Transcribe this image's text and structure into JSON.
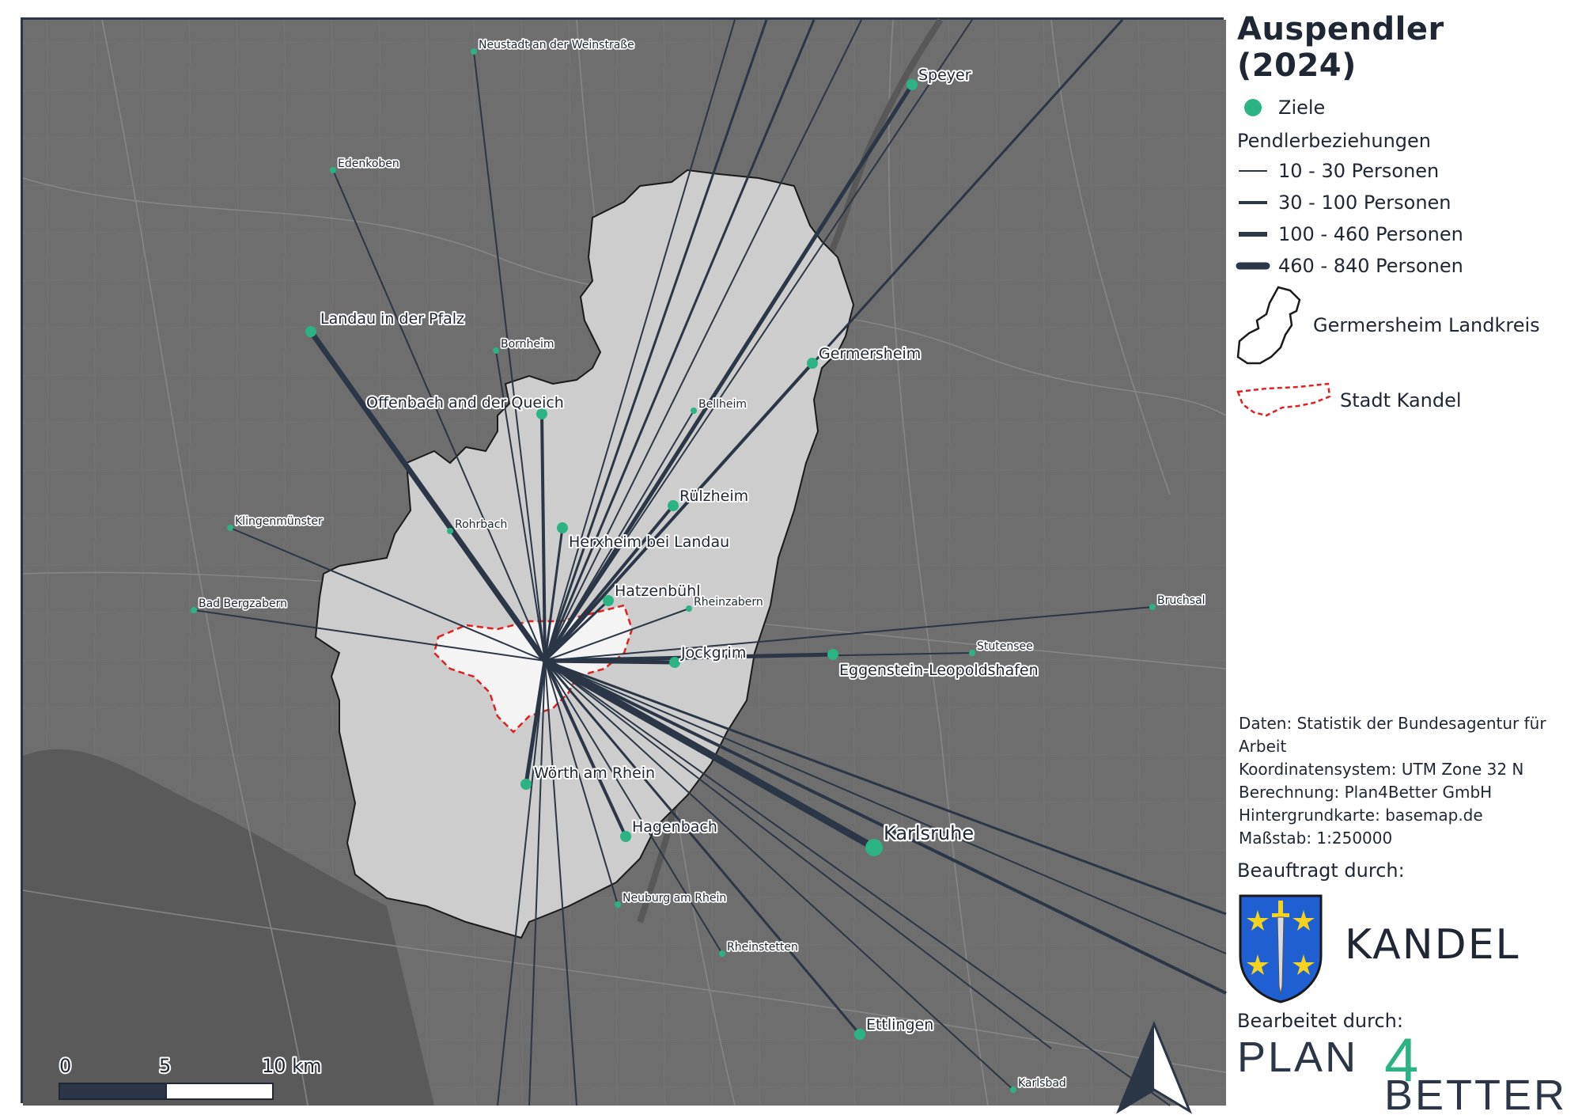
{
  "legend": {
    "title": "Auspendler (2024)",
    "destinations_label": "Ziele",
    "relations_heading": "Pendlerbeziehungen",
    "classes": [
      "10 - 30 Personen",
      "30 - 100 Personen",
      "100 - 460 Personen",
      "460 - 840 Personen"
    ],
    "district_label": "Germersheim Landkreis",
    "town_label": "Stadt Kandel"
  },
  "info": {
    "data": "Daten: Statistik der Bundesagentur für Arbeit",
    "crs": "Koordinatensystem: UTM Zone 32 N",
    "calc": "Berechnung: Plan4Better GmbH",
    "basemap": "Hintergrundkarte: basemap.de",
    "scale": "Maßstab: 1:250000"
  },
  "commissioned_by": "Beauftragt durch:",
  "commissioner": "KANDEL",
  "edited_by": "Bearbeitet durch:",
  "logo": {
    "line1": "PLAN",
    "digit": "4",
    "line2": "BETTER"
  },
  "scalebar": {
    "labels": [
      "0",
      "5",
      "10 km"
    ]
  },
  "colors": {
    "destination": "#2bb383",
    "flow": "#2b3646",
    "town_outline": "#e02020",
    "district_fill": "#cdcdcd",
    "town_fill": "#f4f4f4",
    "background": "#6d6d6d"
  },
  "places": [
    {
      "name": "Neustadt an der Weinstraße",
      "size": "small"
    },
    {
      "name": "Speyer",
      "size": "medium"
    },
    {
      "name": "Edenkoben",
      "size": "small"
    },
    {
      "name": "Landau in der Pfalz",
      "size": "medium"
    },
    {
      "name": "Bornheim",
      "size": "small"
    },
    {
      "name": "Germersheim",
      "size": "medium"
    },
    {
      "name": "Offenbach and der Queich",
      "size": "medium"
    },
    {
      "name": "Bellheim",
      "size": "small"
    },
    {
      "name": "Rülzheim",
      "size": "medium"
    },
    {
      "name": "Klingenmünster",
      "size": "small"
    },
    {
      "name": "Rohrbach",
      "size": "small"
    },
    {
      "name": "Herxheim bei Landau",
      "size": "medium"
    },
    {
      "name": "Hatzenbühl",
      "size": "medium"
    },
    {
      "name": "Rheinzabern",
      "size": "small"
    },
    {
      "name": "Bad Bergzabern",
      "size": "small"
    },
    {
      "name": "Bruchsal",
      "size": "small"
    },
    {
      "name": "Stutensee",
      "size": "small"
    },
    {
      "name": "Jockgrim",
      "size": "medium"
    },
    {
      "name": "Eggenstein-Leopoldshafen",
      "size": "medium"
    },
    {
      "name": "Wörth am Rhein",
      "size": "medium"
    },
    {
      "name": "Karlsruhe",
      "size": "large"
    },
    {
      "name": "Hagenbach",
      "size": "medium"
    },
    {
      "name": "Neuburg am Rhein",
      "size": "small"
    },
    {
      "name": "Rheinstetten",
      "size": "small"
    },
    {
      "name": "Ettlingen",
      "size": "medium"
    },
    {
      "name": "Karlsbad",
      "size": "small"
    }
  ]
}
